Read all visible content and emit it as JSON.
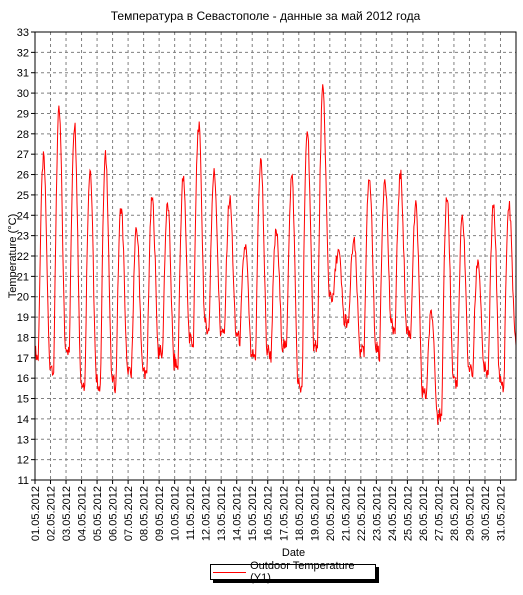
{
  "chart_data": {
    "type": "line",
    "title": "Температура в Севастополе - данные за май 2012 года",
    "xlabel": "Date",
    "ylabel": "Temperature (°C)",
    "ylim": [
      11,
      33
    ],
    "yticks": [
      11,
      12,
      13,
      14,
      15,
      16,
      17,
      18,
      19,
      20,
      21,
      22,
      23,
      24,
      25,
      26,
      27,
      28,
      29,
      30,
      31,
      32,
      33
    ],
    "xticks": [
      "01.05.2012",
      "02.05.2012",
      "03.05.2012",
      "04.05.2012",
      "05.05.2012",
      "06.05.2012",
      "07.05.2012",
      "08.05.2012",
      "09.05.2012",
      "10.05.2012",
      "11.05.2012",
      "12.05.2012",
      "13.05.2012",
      "14.05.2012",
      "15.05.2012",
      "16.05.2012",
      "17.05.2012",
      "18.05.2012",
      "19.05.2012",
      "20.05.2012",
      "21.05.2012",
      "22.05.2012",
      "23.05.2012",
      "24.05.2012",
      "25.05.2012",
      "26.05.2012",
      "27.05.2012",
      "28.05.2012",
      "29.05.2012",
      "30.05.2012",
      "31.05.2012"
    ],
    "grid": true,
    "legend": "bottom-center",
    "series": [
      {
        "name": "Outdoor Temperature (Y1)",
        "color": "#ff0000",
        "days": [
          {
            "date": "01.05.2012",
            "min": 16.9,
            "max": 26.8
          },
          {
            "date": "02.05.2012",
            "min": 16.3,
            "max": 29.1
          },
          {
            "date": "03.05.2012",
            "min": 17.2,
            "max": 28.5
          },
          {
            "date": "04.05.2012",
            "min": 15.5,
            "max": 26.3
          },
          {
            "date": "05.05.2012",
            "min": 15.4,
            "max": 26.9
          },
          {
            "date": "06.05.2012",
            "min": 15.5,
            "max": 24.4
          },
          {
            "date": "07.05.2012",
            "min": 16.0,
            "max": 23.3
          },
          {
            "date": "08.05.2012",
            "min": 16.0,
            "max": 24.8
          },
          {
            "date": "09.05.2012",
            "min": 17.0,
            "max": 24.5
          },
          {
            "date": "10.05.2012",
            "min": 16.4,
            "max": 25.8
          },
          {
            "date": "11.05.2012",
            "min": 17.6,
            "max": 28.4
          },
          {
            "date": "12.05.2012",
            "min": 18.2,
            "max": 26.1
          },
          {
            "date": "13.05.2012",
            "min": 18.0,
            "max": 24.8
          },
          {
            "date": "14.05.2012",
            "min": 17.8,
            "max": 22.5
          },
          {
            "date": "15.05.2012",
            "min": 16.7,
            "max": 26.7
          },
          {
            "date": "16.05.2012",
            "min": 17.0,
            "max": 23.2
          },
          {
            "date": "17.05.2012",
            "min": 17.3,
            "max": 25.9
          },
          {
            "date": "18.05.2012",
            "min": 15.3,
            "max": 28.2
          },
          {
            "date": "19.05.2012",
            "min": 17.4,
            "max": 30.1
          },
          {
            "date": "20.05.2012",
            "min": 19.8,
            "max": 22.2
          },
          {
            "date": "21.05.2012",
            "min": 18.5,
            "max": 22.7
          },
          {
            "date": "22.05.2012",
            "min": 17.1,
            "max": 26.0
          },
          {
            "date": "23.05.2012",
            "min": 17.1,
            "max": 25.9
          },
          {
            "date": "24.05.2012",
            "min": 18.2,
            "max": 26.0
          },
          {
            "date": "25.05.2012",
            "min": 18.0,
            "max": 24.4
          },
          {
            "date": "26.05.2012",
            "min": 15.0,
            "max": 19.2
          },
          {
            "date": "27.05.2012",
            "min": 13.9,
            "max": 25.0
          },
          {
            "date": "28.05.2012",
            "min": 15.6,
            "max": 23.9
          },
          {
            "date": "29.05.2012",
            "min": 16.1,
            "max": 21.8
          },
          {
            "date": "30.05.2012",
            "min": 16.0,
            "max": 24.4
          },
          {
            "date": "31.05.2012",
            "min": 15.4,
            "max": 24.5
          }
        ],
        "end_value": 17.6
      }
    ]
  }
}
